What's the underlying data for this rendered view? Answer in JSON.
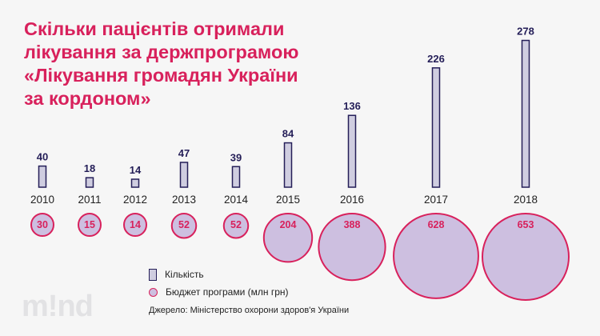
{
  "title_lines": [
    "Скільки пацієнтів отримали",
    "лікування за держпрограмою",
    "«Лікування громадян України",
    "за кордоном»"
  ],
  "legend": {
    "count": "Кількість",
    "budget": "Бюджет програми (млн грн)"
  },
  "source": "Джерело: Міністерство охорони здоров'я України",
  "logo": "m!nd",
  "colors": {
    "title": "#d8215c",
    "bar_fill": "#cfcde0",
    "bar_stroke": "#241e58",
    "bubble_fill": "#cdbfe0",
    "bubble_stroke": "#d8215c"
  },
  "chart_data": {
    "type": "bar",
    "categories": [
      "2010",
      "2011",
      "2012",
      "2013",
      "2014",
      "2015",
      "2016",
      "2017",
      "2018"
    ],
    "series": [
      {
        "name": "Кількість",
        "values": [
          40,
          18,
          14,
          47,
          39,
          84,
          136,
          226,
          278
        ]
      },
      {
        "name": "Бюджет програми (млн грн)",
        "values": [
          30,
          15,
          14,
          52,
          52,
          204,
          388,
          628,
          653
        ]
      }
    ]
  }
}
